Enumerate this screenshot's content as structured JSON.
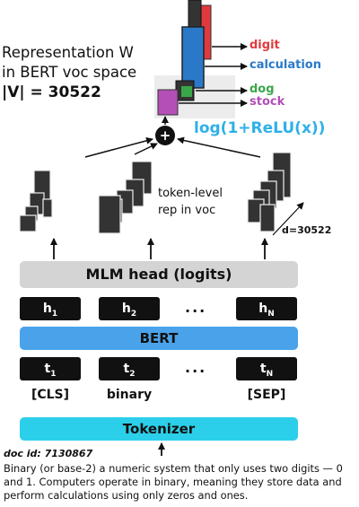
{
  "representation": {
    "line1": "Representation W",
    "line2": "in BERT voc space",
    "line3": "|V| = 30522"
  },
  "words": [
    {
      "label": "digit",
      "color": "#e03a3e"
    },
    {
      "label": "calculation",
      "color": "#2a79c9"
    },
    {
      "label": "dog",
      "color": "#3aa64a"
    },
    {
      "label": "stock",
      "color": "#b44fb8"
    }
  ],
  "formula": "log(1+ReLU(x))",
  "plus_symbol": "+",
  "token_rep": {
    "line1": "token-level",
    "line2": "rep in voc"
  },
  "dim_label": "d=30522",
  "mlm_head": "MLM head (logits)",
  "hidden": {
    "h1": "h",
    "h1_sub": "1",
    "h2": "h",
    "h2_sub": "2",
    "hN": "h",
    "hN_sub": "N",
    "dots": "..."
  },
  "bert": "BERT",
  "tokens_in": {
    "t1": "t",
    "t1_sub": "1",
    "t2": "t",
    "t2_sub": "2",
    "tN": "t",
    "tN_sub": "N",
    "dots": "..."
  },
  "token_words": {
    "first": "[CLS]",
    "second": "binary",
    "last": "[SEP]"
  },
  "tokenizer": "Tokenizer",
  "doc_id": "doc id: 7130867",
  "doc_text": "Binary (or base-2) a numeric system that only uses two digits — 0 and 1. Computers operate in binary, meaning they store data and perform calculations using only zeros and ones."
}
